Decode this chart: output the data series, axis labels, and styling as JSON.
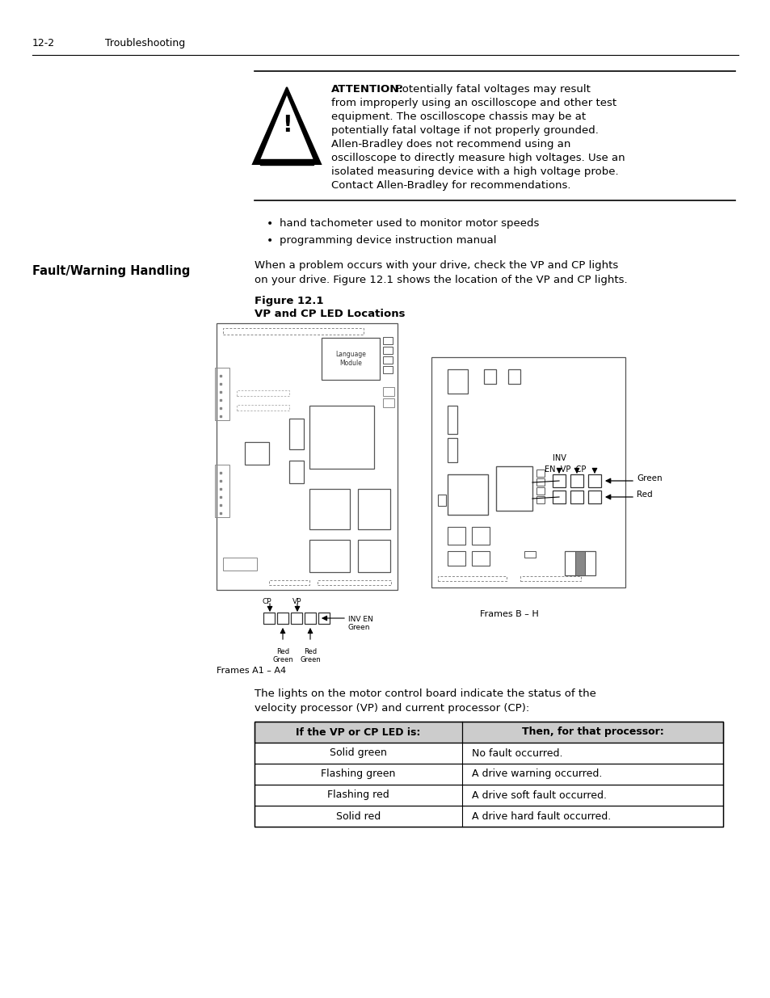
{
  "page_number": "12-2",
  "header_section": "Troubleshooting",
  "attention_bold": "ATTENTION:",
  "attention_lines": [
    " Potentially fatal voltages may result",
    "from improperly using an oscilloscope and other test",
    "equipment. The oscilloscope chassis may be at",
    "potentially fatal voltage if not properly grounded.",
    "Allen-Bradley does not recommend using an",
    "oscilloscope to directly measure high voltages. Use an",
    "isolated measuring device with a high voltage probe.",
    "Contact Allen-Bradley for recommendations."
  ],
  "bullet1": "hand tachometer used to monitor motor speeds",
  "bullet2": "programming device instruction manual",
  "section_title": "Fault/Warning Handling",
  "body_line1": "When a problem occurs with your drive, check the VP and CP lights",
  "body_line2": "on your drive. Figure 12.1 shows the location of the VP and CP lights.",
  "figure_title1": "Figure 12.1",
  "figure_title2": "VP and CP LED Locations",
  "frames_a": "Frames A1 – A4",
  "frames_b": "Frames B – H",
  "post_fig_line1": "The lights on the motor control board indicate the status of the",
  "post_fig_line2": "velocity processor (VP) and current processor (CP):",
  "table_header1": "If the VP or CP LED is:",
  "table_header2": "Then, for that processor:",
  "table_rows": [
    [
      "Solid green",
      "No fault occurred."
    ],
    [
      "Flashing green",
      "A drive warning occurred."
    ],
    [
      "Flashing red",
      "A drive soft fault occurred."
    ],
    [
      "Solid red",
      "A drive hard fault occurred."
    ]
  ],
  "bg_color": "#ffffff",
  "text_color": "#000000"
}
